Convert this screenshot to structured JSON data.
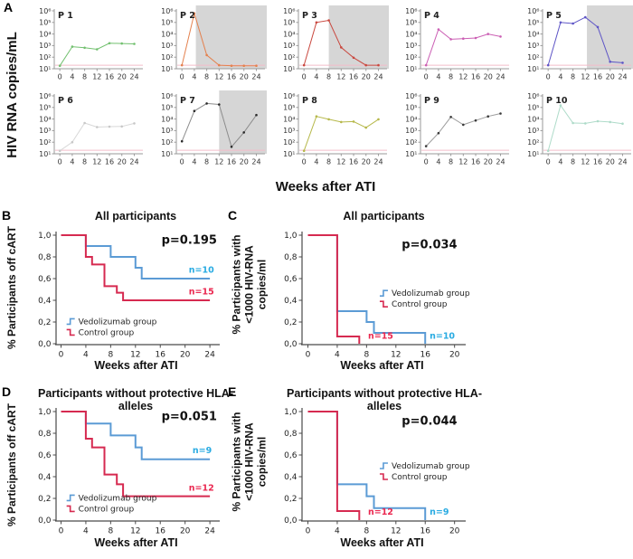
{
  "panels": {
    "a": {
      "label": "A",
      "ylabel": "HIV RNA copies/mL",
      "xlabel": "Weeks after ATI"
    },
    "b": {
      "label": "B",
      "title": "All participants",
      "ylabel": "% Participants off cART",
      "xlabel": "Weeks after ATI"
    },
    "c": {
      "label": "C",
      "title": "All participants",
      "ylabel_lines": [
        "% Participants with",
        "<1000 HIV-RNA",
        "copies/ml"
      ],
      "xlabel": "Weeks after ATI"
    },
    "d": {
      "label": "D",
      "title": "Participants without protective HLA-alleles",
      "ylabel": "% Participants off cART",
      "xlabel": "Weeks after ATI"
    },
    "e": {
      "label": "E",
      "title": "Participants without protective HLA-alleles",
      "ylabel_lines": [
        "% Participants with",
        "<1000 HIV-RNA",
        "copies/ml"
      ],
      "xlabel": "Weeks after ATI"
    }
  },
  "chart_data": {
    "small_multiples": {
      "type": "line",
      "yscale": "log",
      "ylim": [
        10,
        1000000
      ],
      "ytick_labels": [
        "10⁶",
        "10⁵",
        "10⁴",
        "10³",
        "10²",
        "10¹"
      ],
      "xticks": [
        0,
        4,
        8,
        12,
        16,
        20,
        24
      ],
      "detection_limit_value": 20,
      "detection_line_color": "#f3bdc9",
      "shade_color": "#d6d6d6",
      "axis_color": "#9a9a9a",
      "plots": [
        {
          "id": "P 1",
          "color": "#72c06f",
          "x": [
            0,
            4,
            8,
            12,
            16,
            20,
            24
          ],
          "y": [
            18,
            800,
            650,
            480,
            1600,
            1500,
            1400
          ],
          "shade_from": null
        },
        {
          "id": "P 2",
          "color": "#e4814e",
          "x": [
            0,
            4,
            8,
            12,
            16,
            20,
            24
          ],
          "y": [
            20,
            600000,
            150,
            20,
            18,
            18,
            18
          ],
          "shade_from": 4.5
        },
        {
          "id": "P 3",
          "color": "#c9473e",
          "x": [
            0,
            4,
            8,
            12,
            16,
            20,
            24
          ],
          "y": [
            20,
            100000,
            150000,
            700,
            90,
            20,
            20
          ],
          "shade_from": 8
        },
        {
          "id": "P 4",
          "color": "#cb5fb4",
          "x": [
            0,
            4,
            8,
            12,
            16,
            20,
            24
          ],
          "y": [
            20,
            25000,
            3500,
            4000,
            4500,
            10000,
            6000
          ],
          "shade_from": null
        },
        {
          "id": "P 5",
          "color": "#5e55c6",
          "x": [
            0,
            4,
            8,
            12,
            16,
            20,
            24
          ],
          "y": [
            20,
            100000,
            80000,
            280000,
            40000,
            40,
            33
          ],
          "shade_from": 12.5
        },
        {
          "id": "P 6",
          "color": "#d8d8d8",
          "marker": "#c8c8c8",
          "x": [
            0,
            4,
            8,
            12,
            16,
            20,
            24
          ],
          "y": [
            18,
            100,
            4500,
            2000,
            2200,
            2300,
            4200
          ],
          "shade_from": null
        },
        {
          "id": "P 7",
          "color": "#8c8c8c",
          "marker": "#2a2a2a",
          "x": [
            0,
            4,
            8,
            12,
            16,
            20,
            24
          ],
          "y": [
            120,
            50000,
            220000,
            180000,
            40,
            700,
            22000
          ],
          "shade_from": 12
        },
        {
          "id": "P 8",
          "color": "#b6b84a",
          "x": [
            0,
            4,
            8,
            12,
            16,
            20,
            24
          ],
          "y": [
            18,
            17000,
            9500,
            5500,
            6000,
            1800,
            9500
          ],
          "shade_from": null
        },
        {
          "id": "P 9",
          "color": "#9c9c9c",
          "marker": "#3a3a3a",
          "x": [
            0,
            4,
            8,
            12,
            16,
            20,
            24
          ],
          "y": [
            45,
            600,
            15000,
            3200,
            7500,
            17000,
            30000
          ],
          "shade_from": null
        },
        {
          "id": "P 10",
          "color": "#aedbc9",
          "x": [
            0,
            4,
            8,
            12,
            16,
            20,
            24
          ],
          "y": [
            18,
            150000,
            4500,
            4200,
            6500,
            5500,
            4000
          ],
          "shade_from": null
        }
      ]
    },
    "km": {
      "ytick_values": [
        0,
        0.2,
        0.4,
        0.6,
        0.8,
        1.0
      ],
      "ytick_labels": [
        "0,0",
        "0,2",
        "0,4",
        "0,6",
        "0,8",
        "1,0"
      ],
      "axis_color": "#4a4a4a",
      "blue": "#5b9bd5",
      "red": "#d62a50",
      "blue_label_color": "#29abe2",
      "red_label_color": "#ea2850",
      "b": {
        "type": "line",
        "subtype": "kaplan-meier",
        "title": "All participants",
        "p_value": "p=0.195",
        "p_pos": [
          16.2,
          0.92
        ],
        "xticks": [
          0,
          4,
          8,
          12,
          16,
          20,
          24
        ],
        "xmax": 24,
        "legend_pos": [
          0.9,
          0.205
        ],
        "series": [
          {
            "name": "Vedolizumab group",
            "color_key": "blue",
            "n_label": "n=10",
            "n_pos": [
              20.6,
              0.655
            ],
            "steps": [
              [
                0,
                1
              ],
              [
                4,
                1
              ],
              [
                4,
                0.9
              ],
              [
                8,
                0.9
              ],
              [
                8,
                0.8
              ],
              [
                12,
                0.8
              ],
              [
                12,
                0.7
              ],
              [
                13,
                0.7
              ],
              [
                13,
                0.6
              ],
              [
                24,
                0.6
              ]
            ]
          },
          {
            "name": "Control group",
            "color_key": "red",
            "n_label": "n=15",
            "n_pos": [
              20.6,
              0.455
            ],
            "steps": [
              [
                0,
                1
              ],
              [
                4,
                1
              ],
              [
                4,
                0.8
              ],
              [
                5,
                0.8
              ],
              [
                5,
                0.73
              ],
              [
                7,
                0.73
              ],
              [
                7,
                0.53
              ],
              [
                9,
                0.53
              ],
              [
                9,
                0.47
              ],
              [
                10,
                0.47
              ],
              [
                10,
                0.4
              ],
              [
                24,
                0.4
              ]
            ]
          }
        ]
      },
      "c": {
        "type": "line",
        "subtype": "kaplan-meier",
        "title": "All participants",
        "p_value": "p=0.034",
        "p_pos": [
          12.8,
          0.88
        ],
        "xticks": [
          0,
          4,
          8,
          12,
          16,
          20
        ],
        "xmax": 20,
        "legend_pos": [
          9.8,
          0.465
        ],
        "series": [
          {
            "name": "Vedolizumab group",
            "color_key": "blue",
            "n_label": "n=10",
            "n_pos": [
              16.6,
              0.045
            ],
            "steps": [
              [
                0,
                1
              ],
              [
                4,
                1
              ],
              [
                4,
                0.3
              ],
              [
                8,
                0.3
              ],
              [
                8,
                0.2
              ],
              [
                9,
                0.2
              ],
              [
                9,
                0.1
              ],
              [
                16,
                0.1
              ],
              [
                16,
                0
              ]
            ]
          },
          {
            "name": "Control group",
            "color_key": "red",
            "n_label": "n=15",
            "n_pos": [
              8.2,
              0.045
            ],
            "steps": [
              [
                0,
                1
              ],
              [
                4,
                1
              ],
              [
                4,
                0.067
              ],
              [
                7,
                0.067
              ],
              [
                7,
                0
              ]
            ]
          }
        ]
      },
      "d": {
        "type": "line",
        "subtype": "kaplan-meier",
        "title": "Participants without protective HLA-alleles",
        "p_value": "p=0.051",
        "p_pos": [
          16.2,
          0.92
        ],
        "xticks": [
          0,
          4,
          8,
          12,
          16,
          20,
          24
        ],
        "xmax": 24,
        "legend_pos": [
          0.9,
          0.205
        ],
        "series": [
          {
            "name": "Vedolizumab group",
            "color_key": "blue",
            "n_label": "n=9",
            "n_pos": [
              21.2,
              0.615
            ],
            "steps": [
              [
                0,
                1
              ],
              [
                4,
                1
              ],
              [
                4,
                0.89
              ],
              [
                8,
                0.89
              ],
              [
                8,
                0.78
              ],
              [
                12,
                0.78
              ],
              [
                12,
                0.67
              ],
              [
                13,
                0.67
              ],
              [
                13,
                0.56
              ],
              [
                24,
                0.56
              ]
            ]
          },
          {
            "name": "Control group",
            "color_key": "red",
            "n_label": "n=12",
            "n_pos": [
              20.6,
              0.27
            ],
            "steps": [
              [
                0,
                1
              ],
              [
                4,
                1
              ],
              [
                4,
                0.75
              ],
              [
                5,
                0.75
              ],
              [
                5,
                0.67
              ],
              [
                7,
                0.67
              ],
              [
                7,
                0.42
              ],
              [
                9,
                0.42
              ],
              [
                9,
                0.33
              ],
              [
                10,
                0.33
              ],
              [
                10,
                0.22
              ],
              [
                24,
                0.22
              ]
            ]
          }
        ]
      },
      "e": {
        "type": "line",
        "subtype": "kaplan-meier",
        "title": "Participants without protective HLA-alleles",
        "p_value": "p=0.044",
        "p_pos": [
          12.8,
          0.88
        ],
        "xticks": [
          0,
          4,
          8,
          12,
          16,
          20
        ],
        "xmax": 20,
        "legend_pos": [
          9.8,
          0.5
        ],
        "series": [
          {
            "name": "Vedolizumab group",
            "color_key": "blue",
            "n_label": "n=9",
            "n_pos": [
              16.6,
              0.05
            ],
            "steps": [
              [
                0,
                1
              ],
              [
                4,
                1
              ],
              [
                4,
                0.33
              ],
              [
                8,
                0.33
              ],
              [
                8,
                0.22
              ],
              [
                9,
                0.22
              ],
              [
                9,
                0.11
              ],
              [
                16,
                0.11
              ],
              [
                16,
                0
              ]
            ]
          },
          {
            "name": "Control group",
            "color_key": "red",
            "n_label": "n=12",
            "n_pos": [
              8.2,
              0.05
            ],
            "steps": [
              [
                0,
                1
              ],
              [
                4,
                1
              ],
              [
                4,
                0.083
              ],
              [
                7,
                0.083
              ],
              [
                7,
                0
              ]
            ]
          }
        ]
      }
    }
  }
}
